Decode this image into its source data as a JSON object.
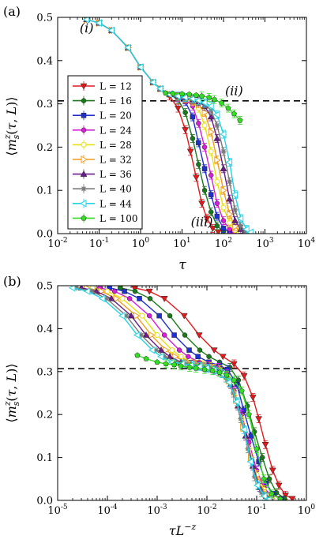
{
  "chart_data": [
    {
      "type": "line",
      "panel_label": "(a)",
      "xlabel": "τ",
      "ylabel": "⟨m_s^z(τ,L)⟩",
      "xscale": "log",
      "xlim": [
        0.01,
        10000
      ],
      "ylim": [
        0,
        0.5
      ],
      "x_ticks": [
        0.01,
        0.1,
        1,
        10,
        100,
        1000,
        10000
      ],
      "x_tick_labels": [
        [
          "10",
          "-2"
        ],
        [
          "10",
          "-1"
        ],
        [
          "10",
          "0"
        ],
        [
          "10",
          "1"
        ],
        [
          "10",
          "2"
        ],
        [
          "10",
          "3"
        ],
        [
          "10",
          "4"
        ]
      ],
      "y_ticks": [
        0,
        0.1,
        0.2,
        0.3,
        0.4,
        0.5
      ],
      "y_tick_labels": [
        "0.0",
        "0.1",
        "0.2",
        "0.3",
        "0.4",
        "0.5"
      ],
      "reference_line": {
        "y": 0.307,
        "style": "dashed"
      },
      "annotations": [
        {
          "text": "(i)",
          "x": 0.05,
          "y": 0.465
        },
        {
          "text": "(ii)",
          "x": 180,
          "y": 0.32
        },
        {
          "text": "(iii)",
          "x": 30,
          "y": 0.017
        }
      ],
      "legend": "left-middle",
      "series": [
        {
          "name": "L = 12",
          "color": "#e31a1c",
          "marker": "tri-down",
          "x": [
            0.05,
            0.1,
            0.2,
            0.5,
            1,
            2,
            3,
            5,
            8,
            12,
            16,
            22,
            30,
            40,
            55,
            75
          ],
          "y": [
            0.495,
            0.487,
            0.47,
            0.43,
            0.385,
            0.35,
            0.335,
            0.318,
            0.29,
            0.24,
            0.19,
            0.13,
            0.07,
            0.035,
            0.012,
            0.004
          ]
        },
        {
          "name": "L = 16",
          "color": "#1a7a1a",
          "marker": "circle",
          "x": [
            0.05,
            0.1,
            0.2,
            0.5,
            1,
            2,
            3,
            5,
            8,
            12,
            18,
            25,
            35,
            50,
            70,
            100
          ],
          "y": [
            0.495,
            0.487,
            0.47,
            0.43,
            0.385,
            0.35,
            0.335,
            0.322,
            0.31,
            0.28,
            0.22,
            0.16,
            0.1,
            0.05,
            0.018,
            0.005
          ]
        },
        {
          "name": "L = 20",
          "color": "#1f2fd0",
          "marker": "square",
          "x": [
            0.05,
            0.1,
            0.2,
            0.5,
            1,
            2,
            3,
            5,
            8,
            12,
            18,
            25,
            35,
            50,
            70,
            100,
            140
          ],
          "y": [
            0.495,
            0.487,
            0.47,
            0.43,
            0.385,
            0.35,
            0.335,
            0.322,
            0.314,
            0.305,
            0.27,
            0.21,
            0.15,
            0.09,
            0.04,
            0.012,
            0.004
          ]
        },
        {
          "name": "L = 24",
          "color": "#d61fd6",
          "marker": "circle",
          "x": [
            0.05,
            0.1,
            0.2,
            0.5,
            1,
            2,
            3,
            5,
            8,
            12,
            18,
            25,
            35,
            50,
            70,
            100,
            140,
            180
          ],
          "y": [
            0.495,
            0.487,
            0.47,
            0.43,
            0.385,
            0.35,
            0.335,
            0.322,
            0.315,
            0.31,
            0.295,
            0.255,
            0.2,
            0.135,
            0.07,
            0.03,
            0.01,
            0.004
          ]
        },
        {
          "name": "L = 28",
          "color": "#e8e010",
          "marker": "circle-open",
          "x": [
            0.05,
            0.1,
            0.2,
            0.5,
            1,
            2,
            3,
            5,
            8,
            12,
            18,
            25,
            35,
            50,
            70,
            100,
            140,
            190,
            240
          ],
          "y": [
            0.495,
            0.487,
            0.47,
            0.43,
            0.385,
            0.35,
            0.335,
            0.322,
            0.316,
            0.312,
            0.305,
            0.29,
            0.25,
            0.19,
            0.12,
            0.06,
            0.025,
            0.008,
            0.003
          ]
        },
        {
          "name": "L = 32",
          "color": "#f29c1f",
          "marker": "tri-right",
          "x": [
            0.05,
            0.1,
            0.2,
            0.5,
            1,
            2,
            3,
            5,
            8,
            12,
            18,
            25,
            35,
            50,
            70,
            100,
            140,
            190,
            260
          ],
          "y": [
            0.495,
            0.487,
            0.47,
            0.43,
            0.385,
            0.35,
            0.335,
            0.322,
            0.317,
            0.313,
            0.308,
            0.3,
            0.28,
            0.235,
            0.17,
            0.1,
            0.045,
            0.016,
            0.004
          ]
        },
        {
          "name": "L = 36",
          "color": "#6a1c8a",
          "marker": "tri-up",
          "x": [
            0.05,
            0.1,
            0.2,
            0.5,
            1,
            2,
            3,
            5,
            8,
            12,
            18,
            25,
            35,
            50,
            70,
            100,
            140,
            190,
            260,
            320
          ],
          "y": [
            0.495,
            0.487,
            0.47,
            0.43,
            0.385,
            0.35,
            0.335,
            0.322,
            0.317,
            0.314,
            0.31,
            0.305,
            0.295,
            0.27,
            0.22,
            0.15,
            0.08,
            0.03,
            0.01,
            0.004
          ]
        },
        {
          "name": "L = 40",
          "color": "#7a7a7a",
          "marker": "star",
          "x": [
            0.05,
            0.1,
            0.2,
            0.5,
            1,
            2,
            3,
            5,
            8,
            12,
            18,
            25,
            35,
            50,
            70,
            100,
            140,
            190,
            260,
            340
          ],
          "y": [
            0.495,
            0.487,
            0.47,
            0.43,
            0.385,
            0.35,
            0.335,
            0.322,
            0.318,
            0.315,
            0.311,
            0.307,
            0.3,
            0.285,
            0.25,
            0.19,
            0.12,
            0.055,
            0.018,
            0.005
          ]
        },
        {
          "name": "L = 44",
          "color": "#22d4e6",
          "marker": "tri-left",
          "x": [
            0.05,
            0.1,
            0.2,
            0.5,
            1,
            2,
            3,
            5,
            8,
            12,
            18,
            25,
            35,
            50,
            70,
            100,
            140,
            190,
            260,
            360,
            450
          ],
          "y": [
            0.495,
            0.487,
            0.47,
            0.43,
            0.385,
            0.35,
            0.335,
            0.322,
            0.318,
            0.315,
            0.312,
            0.308,
            0.303,
            0.295,
            0.275,
            0.23,
            0.165,
            0.09,
            0.035,
            0.01,
            0.003
          ]
        },
        {
          "name": "L = 100",
          "color": "#33dd22",
          "marker": "pentagon",
          "x": [
            4,
            6,
            10,
            15,
            22,
            30,
            45,
            60,
            90,
            130,
            180,
            250
          ],
          "y": [
            0.325,
            0.324,
            0.323,
            0.322,
            0.32,
            0.318,
            0.315,
            0.31,
            0.302,
            0.29,
            0.277,
            0.262
          ]
        }
      ]
    },
    {
      "type": "line",
      "panel_label": "(b)",
      "xlabel": "τL^{-z}",
      "ylabel": "⟨m_s^z(τ,L)⟩",
      "xscale": "log",
      "xlim": [
        1e-05,
        1
      ],
      "ylim": [
        0,
        0.5
      ],
      "x_ticks": [
        1e-05,
        0.0001,
        0.001,
        0.01,
        0.1,
        1
      ],
      "x_tick_labels": [
        [
          "10",
          "-5"
        ],
        [
          "10",
          "-4"
        ],
        [
          "10",
          "-3"
        ],
        [
          "10",
          "-2"
        ],
        [
          "10",
          "-1"
        ],
        [
          "10",
          "0"
        ]
      ],
      "y_ticks": [
        0,
        0.1,
        0.2,
        0.3,
        0.4,
        0.5
      ],
      "y_tick_labels": [
        "0.0",
        "0.1",
        "0.2",
        "0.3",
        "0.4",
        "0.5"
      ],
      "reference_line": {
        "y": 0.307,
        "style": "dashed"
      },
      "series": [
        {
          "name": "L = 12",
          "color": "#e31a1c",
          "marker": "tri-down",
          "x": [
            0.00035,
            0.0007,
            0.0014,
            0.0035,
            0.007,
            0.014,
            0.021,
            0.035,
            0.056,
            0.084,
            0.11,
            0.15,
            0.21,
            0.28,
            0.38,
            0.52
          ],
          "y": [
            0.495,
            0.487,
            0.47,
            0.43,
            0.385,
            0.35,
            0.335,
            0.318,
            0.29,
            0.24,
            0.19,
            0.13,
            0.07,
            0.035,
            0.012,
            0.004
          ]
        },
        {
          "name": "L = 16",
          "color": "#1a7a1a",
          "marker": "circle",
          "x": [
            0.00018,
            0.00036,
            0.00072,
            0.0018,
            0.0036,
            0.0072,
            0.011,
            0.018,
            0.029,
            0.043,
            0.065,
            0.09,
            0.13,
            0.18,
            0.25,
            0.36
          ],
          "y": [
            0.495,
            0.487,
            0.47,
            0.43,
            0.385,
            0.35,
            0.335,
            0.322,
            0.31,
            0.28,
            0.22,
            0.16,
            0.1,
            0.05,
            0.018,
            0.005
          ]
        },
        {
          "name": "L = 20",
          "color": "#1f2fd0",
          "marker": "square",
          "x": [
            0.00011,
            0.00022,
            0.00044,
            0.0011,
            0.0022,
            0.0044,
            0.0066,
            0.011,
            0.018,
            0.026,
            0.04,
            0.055,
            0.077,
            0.11,
            0.155,
            0.22,
            0.31
          ],
          "y": [
            0.495,
            0.487,
            0.47,
            0.43,
            0.385,
            0.35,
            0.335,
            0.322,
            0.314,
            0.305,
            0.27,
            0.21,
            0.15,
            0.09,
            0.04,
            0.012,
            0.004
          ]
        },
        {
          "name": "L = 24",
          "color": "#d61fd6",
          "marker": "circle",
          "x": [
            7e-05,
            0.00014,
            0.00028,
            0.0007,
            0.0014,
            0.0028,
            0.0042,
            0.007,
            0.011,
            0.017,
            0.025,
            0.035,
            0.05,
            0.07,
            0.1,
            0.14,
            0.2,
            0.26
          ],
          "y": [
            0.495,
            0.487,
            0.47,
            0.43,
            0.385,
            0.35,
            0.335,
            0.322,
            0.315,
            0.31,
            0.295,
            0.255,
            0.2,
            0.135,
            0.07,
            0.03,
            0.01,
            0.004
          ]
        },
        {
          "name": "L = 28",
          "color": "#e8e010",
          "marker": "circle-open",
          "x": [
            5e-05,
            0.0001,
            0.0002,
            0.0005,
            0.001,
            0.002,
            0.003,
            0.005,
            0.008,
            0.012,
            0.018,
            0.025,
            0.035,
            0.05,
            0.07,
            0.1,
            0.14,
            0.19,
            0.24
          ],
          "y": [
            0.495,
            0.487,
            0.47,
            0.43,
            0.385,
            0.35,
            0.335,
            0.322,
            0.316,
            0.312,
            0.305,
            0.29,
            0.25,
            0.19,
            0.12,
            0.06,
            0.025,
            0.008,
            0.003
          ]
        },
        {
          "name": "L = 32",
          "color": "#f29c1f",
          "marker": "tri-right",
          "x": [
            3.8e-05,
            7.6e-05,
            0.00015,
            0.00038,
            0.00076,
            0.0015,
            0.0023,
            0.0038,
            0.0061,
            0.0091,
            0.014,
            0.019,
            0.027,
            0.038,
            0.053,
            0.076,
            0.106,
            0.144,
            0.2
          ],
          "y": [
            0.495,
            0.487,
            0.47,
            0.43,
            0.385,
            0.35,
            0.335,
            0.322,
            0.317,
            0.313,
            0.308,
            0.3,
            0.28,
            0.235,
            0.17,
            0.1,
            0.045,
            0.016,
            0.004
          ]
        },
        {
          "name": "L = 36",
          "color": "#6a1c8a",
          "marker": "tri-up",
          "x": [
            3e-05,
            6e-05,
            0.00012,
            0.0003,
            0.0006,
            0.0012,
            0.0018,
            0.003,
            0.0048,
            0.0072,
            0.011,
            0.015,
            0.021,
            0.03,
            0.042,
            0.06,
            0.084,
            0.114,
            0.156,
            0.19
          ],
          "y": [
            0.495,
            0.487,
            0.47,
            0.43,
            0.385,
            0.35,
            0.335,
            0.322,
            0.317,
            0.314,
            0.31,
            0.305,
            0.295,
            0.27,
            0.22,
            0.15,
            0.08,
            0.03,
            0.01,
            0.004
          ]
        },
        {
          "name": "L = 40",
          "color": "#7a7a7a",
          "marker": "star",
          "x": [
            2.4e-05,
            4.8e-05,
            9.6e-05,
            0.00024,
            0.00048,
            0.00096,
            0.0014,
            0.0024,
            0.0038,
            0.0058,
            0.0086,
            0.012,
            0.017,
            0.024,
            0.034,
            0.048,
            0.067,
            0.091,
            0.125,
            0.163
          ],
          "y": [
            0.495,
            0.487,
            0.47,
            0.43,
            0.385,
            0.35,
            0.335,
            0.322,
            0.318,
            0.315,
            0.311,
            0.307,
            0.3,
            0.285,
            0.25,
            0.19,
            0.12,
            0.055,
            0.018,
            0.005
          ]
        },
        {
          "name": "L = 44",
          "color": "#22d4e6",
          "marker": "tri-left",
          "x": [
            2e-05,
            4e-05,
            8e-05,
            0.0002,
            0.0004,
            0.0008,
            0.0012,
            0.002,
            0.0032,
            0.0048,
            0.0072,
            0.01,
            0.014,
            0.02,
            0.028,
            0.04,
            0.056,
            0.076,
            0.104,
            0.144,
            0.18
          ],
          "y": [
            0.495,
            0.487,
            0.47,
            0.43,
            0.385,
            0.35,
            0.335,
            0.322,
            0.318,
            0.315,
            0.312,
            0.308,
            0.303,
            0.295,
            0.275,
            0.23,
            0.165,
            0.09,
            0.035,
            0.01,
            0.003
          ]
        },
        {
          "name": "L = 100",
          "color": "#33dd22",
          "marker": "pentagon",
          "x": [
            0.0004,
            0.0006,
            0.001,
            0.0015,
            0.0022,
            0.003,
            0.0045,
            0.006,
            0.009,
            0.013,
            0.018,
            0.025,
            0.035,
            0.05,
            0.07,
            0.1,
            0.14,
            0.2,
            0.3
          ],
          "y": [
            0.338,
            0.33,
            0.322,
            0.318,
            0.316,
            0.313,
            0.31,
            0.308,
            0.305,
            0.302,
            0.298,
            0.292,
            0.28,
            0.255,
            0.2,
            0.12,
            0.05,
            0.015,
            0.003
          ]
        }
      ]
    }
  ]
}
